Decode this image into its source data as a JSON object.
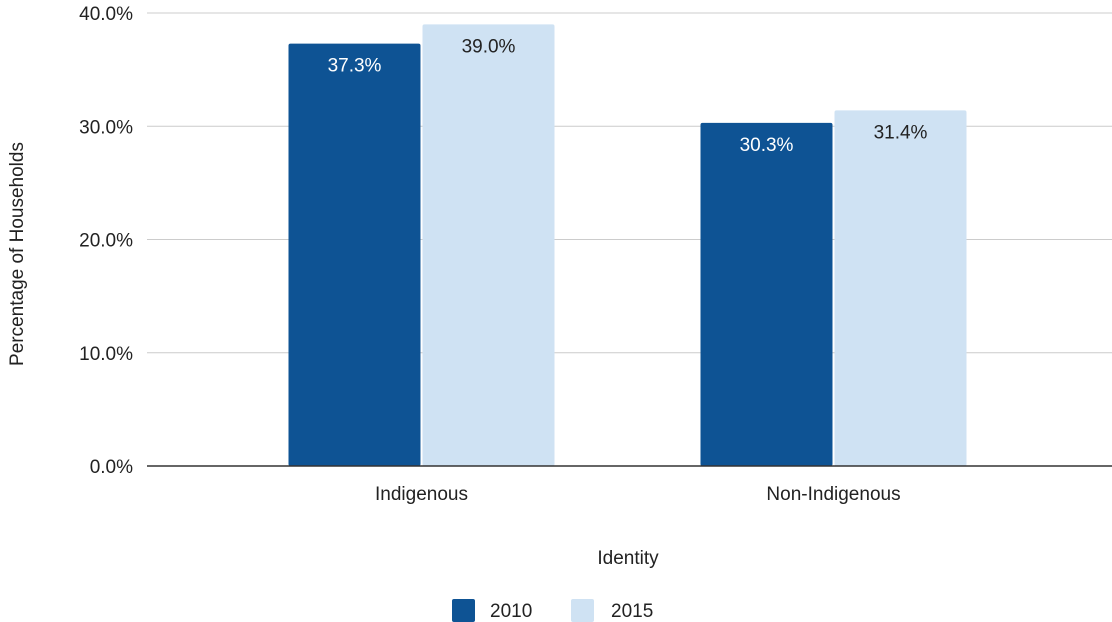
{
  "chart_data": {
    "type": "bar",
    "title": "",
    "xlabel": "Identity",
    "ylabel": "Percentage of Households",
    "categories": [
      "Indigenous",
      "Non-Indigenous"
    ],
    "series": [
      {
        "name": "2010",
        "values": [
          37.3,
          30.3
        ],
        "labels": [
          "37.3%",
          "30.3%"
        ],
        "color": "#0e5394",
        "label_color": "#ffffff"
      },
      {
        "name": "2015",
        "values": [
          39.0,
          31.4
        ],
        "labels": [
          "39.0%",
          "31.4%"
        ],
        "color": "#cfe2f3",
        "label_color": "#222222"
      }
    ],
    "ylim": [
      0,
      40
    ],
    "yticks": [
      0,
      10,
      20,
      30,
      40
    ],
    "ytick_labels": [
      "0.0%",
      "10.0%",
      "20.0%",
      "30.0%",
      "40.0%"
    ],
    "grid": true,
    "legend_position": "bottom"
  }
}
